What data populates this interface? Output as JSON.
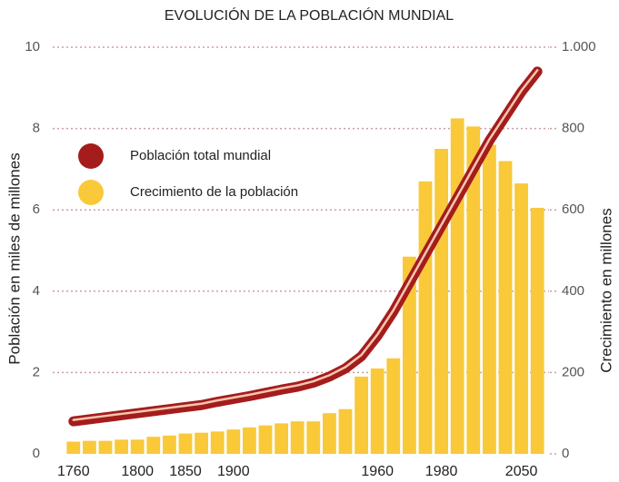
{
  "chart_data": {
    "type": "bar-line",
    "title": "EVOLUCIÓN DE LA POBLACIÓN MUNDIAL",
    "y_label": "Población en miles de millones",
    "y2_label": "Crecimiento en millones",
    "categories": [
      "1760",
      null,
      null,
      null,
      "1800",
      null,
      null,
      "1850",
      null,
      null,
      "1900",
      null,
      null,
      null,
      null,
      null,
      null,
      null,
      null,
      "1960",
      null,
      null,
      null,
      "1980",
      null,
      null,
      null,
      null,
      "2050",
      null
    ],
    "series": [
      {
        "name": "Población total mundial",
        "type": "line",
        "color": "#a51c1c",
        "axis": "y",
        "values": [
          0.8,
          0.85,
          0.9,
          0.95,
          1.0,
          1.05,
          1.1,
          1.15,
          1.2,
          1.28,
          1.35,
          1.42,
          1.5,
          1.58,
          1.65,
          1.75,
          1.9,
          2.1,
          2.4,
          2.9,
          3.5,
          4.2,
          4.9,
          5.6,
          6.3,
          7.0,
          7.7,
          8.3,
          8.9,
          9.4
        ]
      },
      {
        "name": "Crecimiento de la población",
        "type": "bar",
        "color": "#f9c93a",
        "axis": "y2",
        "values": [
          30,
          32,
          32,
          35,
          35,
          42,
          45,
          50,
          52,
          55,
          60,
          65,
          70,
          75,
          80,
          80,
          100,
          110,
          190,
          210,
          235,
          485,
          670,
          750,
          825,
          805,
          760,
          720,
          665,
          605
        ]
      }
    ],
    "ylim": [
      0,
      10
    ],
    "yticks": [
      0,
      2,
      4,
      6,
      8,
      10
    ],
    "y2lim": [
      0,
      1000
    ],
    "y2ticks": [
      0,
      200,
      400,
      600,
      800,
      {
        "value": 1000,
        "label": "1.000"
      }
    ],
    "grid": true
  }
}
